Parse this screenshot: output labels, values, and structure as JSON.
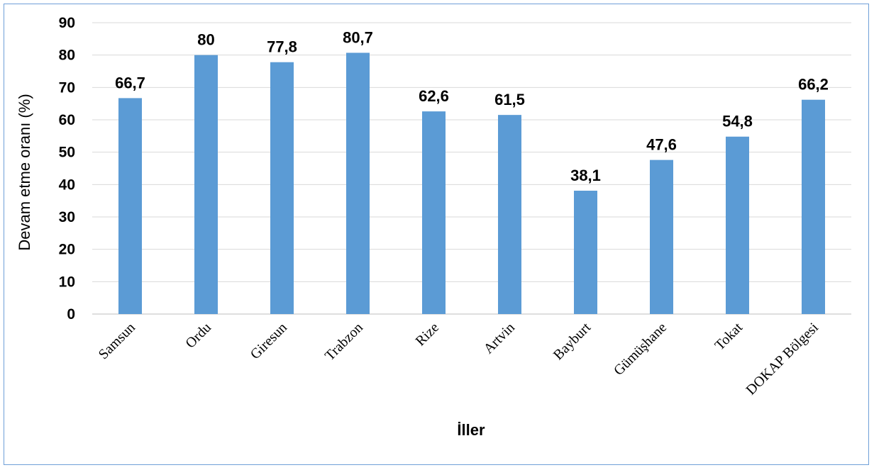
{
  "chart_data": {
    "type": "bar",
    "title": "",
    "xlabel": "İller",
    "ylabel": "Devam etme oranı (%)",
    "ylim": [
      0,
      90
    ],
    "yticks": [
      "0",
      "10",
      "20",
      "30",
      "40",
      "50",
      "60",
      "70",
      "80",
      "90"
    ],
    "grid": true,
    "legend": "none",
    "bar_color": "#5b9bd5",
    "categories": [
      "Samsun",
      "Ordu",
      "Giresun",
      "Trabzon",
      "Rize",
      "Artvin",
      "Bayburt",
      "Gümüşhane",
      "Tokat",
      "DOKAP Bölgesi"
    ],
    "values": [
      66.7,
      80,
      77.8,
      80.7,
      62.6,
      61.5,
      38.1,
      47.6,
      54.8,
      66.2
    ],
    "data_labels": [
      "66,7",
      "80",
      "77,8",
      "80,7",
      "62,6",
      "61,5",
      "38,1",
      "47,6",
      "54,8",
      "66,2"
    ]
  }
}
